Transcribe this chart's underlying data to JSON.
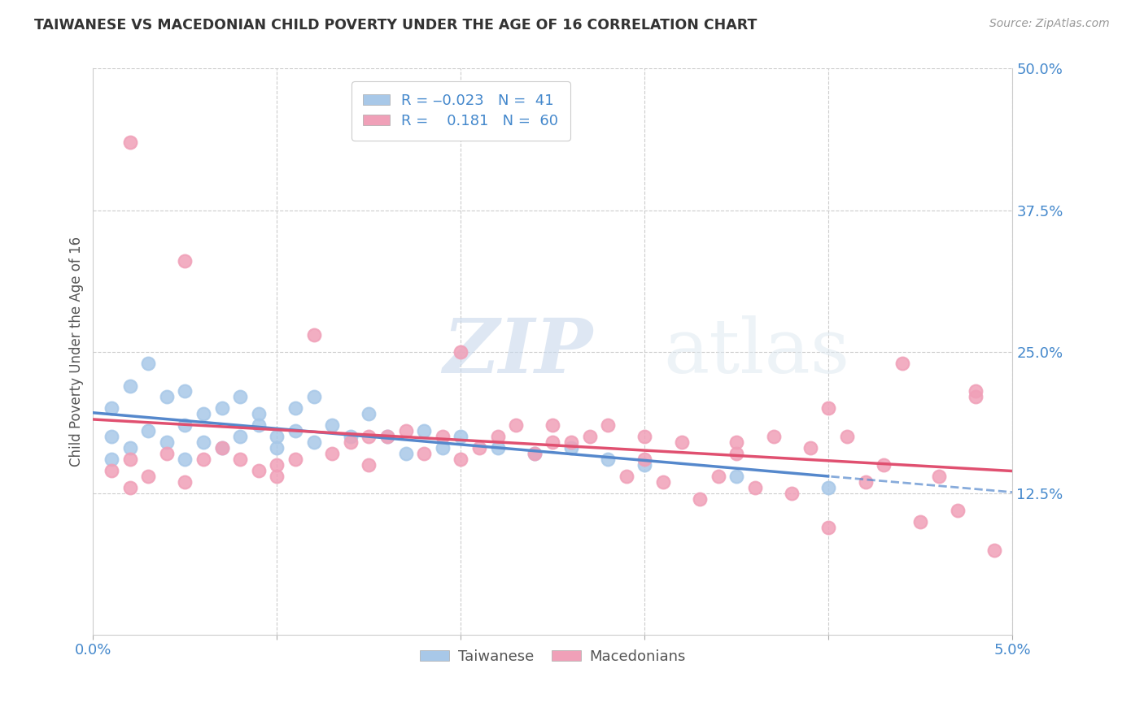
{
  "title": "TAIWANESE VS MACEDONIAN CHILD POVERTY UNDER THE AGE OF 16 CORRELATION CHART",
  "source": "Source: ZipAtlas.com",
  "ylabel": "Child Poverty Under the Age of 16",
  "x_min": 0.0,
  "x_max": 0.05,
  "y_min": 0.0,
  "y_max": 0.5,
  "y_ticks_right": [
    0.125,
    0.25,
    0.375,
    0.5
  ],
  "y_tick_labels_right": [
    "12.5%",
    "25.0%",
    "37.5%",
    "50.0%"
  ],
  "color_taiwanese": "#a8c8e8",
  "color_macedonian": "#f0a0b8",
  "color_trendline_taiwanese": "#5588cc",
  "color_trendline_macedonian": "#e05070",
  "color_axis_labels": "#4488cc",
  "color_grid": "#cccccc",
  "color_title": "#333333",
  "watermark_zip": "ZIP",
  "watermark_atlas": "atlas",
  "tw_x": [
    0.001,
    0.001,
    0.001,
    0.002,
    0.002,
    0.003,
    0.003,
    0.004,
    0.004,
    0.005,
    0.005,
    0.005,
    0.006,
    0.006,
    0.007,
    0.007,
    0.008,
    0.008,
    0.009,
    0.009,
    0.01,
    0.01,
    0.011,
    0.011,
    0.012,
    0.012,
    0.013,
    0.014,
    0.015,
    0.016,
    0.017,
    0.018,
    0.019,
    0.02,
    0.022,
    0.024,
    0.026,
    0.028,
    0.03,
    0.035,
    0.04
  ],
  "tw_y": [
    0.2,
    0.175,
    0.155,
    0.22,
    0.165,
    0.24,
    0.18,
    0.21,
    0.17,
    0.215,
    0.185,
    0.155,
    0.195,
    0.17,
    0.2,
    0.165,
    0.21,
    0.175,
    0.185,
    0.195,
    0.175,
    0.165,
    0.2,
    0.18,
    0.17,
    0.21,
    0.185,
    0.175,
    0.195,
    0.175,
    0.16,
    0.18,
    0.165,
    0.175,
    0.165,
    0.16,
    0.165,
    0.155,
    0.15,
    0.14,
    0.13
  ],
  "mac_x": [
    0.001,
    0.002,
    0.002,
    0.003,
    0.004,
    0.005,
    0.006,
    0.007,
    0.008,
    0.009,
    0.01,
    0.011,
    0.012,
    0.013,
    0.014,
    0.015,
    0.016,
    0.017,
    0.018,
    0.019,
    0.02,
    0.021,
    0.022,
    0.023,
    0.024,
    0.025,
    0.026,
    0.027,
    0.028,
    0.029,
    0.03,
    0.031,
    0.032,
    0.033,
    0.034,
    0.035,
    0.036,
    0.037,
    0.038,
    0.039,
    0.04,
    0.041,
    0.042,
    0.043,
    0.044,
    0.045,
    0.046,
    0.047,
    0.048,
    0.049,
    0.025,
    0.03,
    0.035,
    0.04,
    0.02,
    0.015,
    0.01,
    0.005,
    0.002,
    0.048
  ],
  "mac_y": [
    0.145,
    0.155,
    0.13,
    0.14,
    0.16,
    0.135,
    0.155,
    0.165,
    0.155,
    0.145,
    0.15,
    0.155,
    0.265,
    0.16,
    0.17,
    0.15,
    0.175,
    0.18,
    0.16,
    0.175,
    0.25,
    0.165,
    0.175,
    0.185,
    0.16,
    0.185,
    0.17,
    0.175,
    0.185,
    0.14,
    0.155,
    0.135,
    0.17,
    0.12,
    0.14,
    0.16,
    0.13,
    0.175,
    0.125,
    0.165,
    0.095,
    0.175,
    0.135,
    0.15,
    0.24,
    0.1,
    0.14,
    0.11,
    0.21,
    0.075,
    0.17,
    0.175,
    0.17,
    0.2,
    0.155,
    0.175,
    0.14,
    0.33,
    0.435,
    0.215
  ]
}
